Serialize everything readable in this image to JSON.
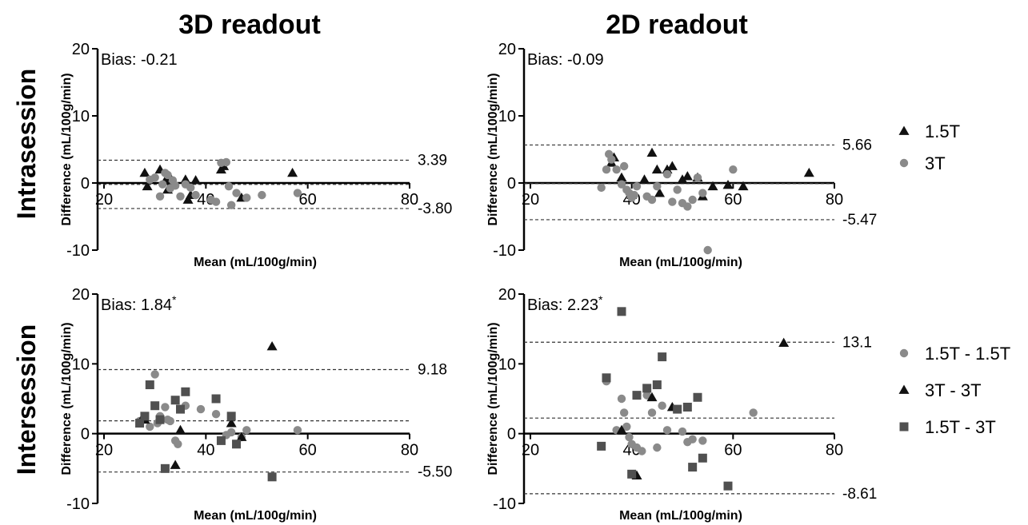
{
  "column_titles": [
    "3D readout",
    "2D readout"
  ],
  "row_titles": [
    "Intrasession",
    "Intersession"
  ],
  "legends": {
    "intrasession": [
      {
        "label": "1.5T",
        "marker": "triangle",
        "color": "#111111"
      },
      {
        "label": "3T",
        "marker": "circle",
        "color": "#8a8a8a"
      }
    ],
    "intersession": [
      {
        "label": "1.5T - 1.5T",
        "marker": "circle",
        "color": "#8a8a8a"
      },
      {
        "label": "3T - 3T",
        "marker": "triangle",
        "color": "#111111"
      },
      {
        "label": "1.5T - 3T",
        "marker": "square",
        "color": "#505050"
      }
    ]
  },
  "chart_data": [
    {
      "type": "scatter",
      "title": "3D readout",
      "xlabel": "Mean (mL/100g/min)",
      "ylabel": "Difference (mL/100g/min)",
      "xlim": [
        20,
        80
      ],
      "ylim": [
        -10,
        20
      ],
      "xticks": [
        20,
        40,
        60,
        80
      ],
      "yticks": [
        -10,
        0,
        10,
        20
      ],
      "bias_label": "Bias: -0.21",
      "bias_asterisk": "",
      "bias": -0.21,
      "upper": 3.39,
      "lower": -3.8,
      "upper_label": "3.39",
      "lower_label": "-3.80",
      "series": [
        {
          "name": "1.5T",
          "marker": "triangle",
          "points": [
            [
              28,
              1.5
            ],
            [
              28.5,
              -0.5
            ],
            [
              31,
              2.0
            ],
            [
              32,
              0.3
            ],
            [
              32.5,
              -1.0
            ],
            [
              33,
              0.8
            ],
            [
              36,
              0.5
            ],
            [
              36.5,
              -2.5
            ],
            [
              37,
              -1.8
            ],
            [
              38,
              0.4
            ],
            [
              43,
              2.0
            ],
            [
              43.5,
              2.5
            ],
            [
              47,
              -2.2
            ],
            [
              57,
              1.5
            ]
          ]
        },
        {
          "name": "3T",
          "marker": "circle",
          "points": [
            [
              29,
              0.5
            ],
            [
              30,
              0.8
            ],
            [
              31,
              -2.0
            ],
            [
              31.5,
              -0.2
            ],
            [
              32,
              1.5
            ],
            [
              32.5,
              1.2
            ],
            [
              33,
              -0.8
            ],
            [
              33.5,
              0.4
            ],
            [
              34,
              -0.4
            ],
            [
              35,
              -2.0
            ],
            [
              36,
              -0.2
            ],
            [
              37,
              -0.7
            ],
            [
              38,
              -1.8
            ],
            [
              41,
              -2.5
            ],
            [
              42,
              -2.8
            ],
            [
              43,
              3.0
            ],
            [
              44,
              3.1
            ],
            [
              44.5,
              -0.5
            ],
            [
              45,
              -3.3
            ],
            [
              46,
              -1.5
            ],
            [
              48,
              -2.2
            ],
            [
              51,
              -1.8
            ],
            [
              58,
              -1.5
            ]
          ]
        }
      ]
    },
    {
      "type": "scatter",
      "title": "2D readout",
      "xlabel": "Mean (mL/100g/min)",
      "ylabel": "Difference (mL/100g/min)",
      "xlim": [
        20,
        80
      ],
      "ylim": [
        -10,
        20
      ],
      "xticks": [
        20,
        40,
        60,
        80
      ],
      "yticks": [
        -10,
        0,
        10,
        20
      ],
      "bias_label": "Bias: -0.09",
      "bias_asterisk": "",
      "bias": -0.09,
      "upper": 5.66,
      "lower": -5.47,
      "upper_label": "5.66",
      "lower_label": "-5.47",
      "series": [
        {
          "name": "1.5T",
          "marker": "triangle",
          "points": [
            [
              36,
              3.0
            ],
            [
              36.5,
              3.8
            ],
            [
              38,
              0.8
            ],
            [
              40,
              -1.8
            ],
            [
              42.5,
              0.5
            ],
            [
              44,
              4.5
            ],
            [
              45,
              2.0
            ],
            [
              45.5,
              -1.5
            ],
            [
              47,
              2.0
            ],
            [
              48,
              2.5
            ],
            [
              50,
              0.5
            ],
            [
              51,
              1.0
            ],
            [
              53,
              0.8
            ],
            [
              54,
              -2.0
            ],
            [
              56,
              -0.5
            ],
            [
              59,
              -0.3
            ],
            [
              62,
              -0.5
            ],
            [
              75,
              1.5
            ]
          ]
        },
        {
          "name": "3T",
          "marker": "circle",
          "points": [
            [
              34,
              -0.7
            ],
            [
              35,
              2.0
            ],
            [
              35.5,
              4.3
            ],
            [
              36,
              3.5
            ],
            [
              37,
              2.0
            ],
            [
              38,
              -0.2
            ],
            [
              38.5,
              2.5
            ],
            [
              39,
              -1.0
            ],
            [
              39.5,
              -1.5
            ],
            [
              40,
              -2.2
            ],
            [
              40.5,
              -1.8
            ],
            [
              41,
              -0.5
            ],
            [
              43,
              -2.0
            ],
            [
              44,
              -2.5
            ],
            [
              45,
              -0.5
            ],
            [
              47,
              1.3
            ],
            [
              48,
              -2.8
            ],
            [
              49,
              -1.0
            ],
            [
              50,
              -3.0
            ],
            [
              51,
              -3.5
            ],
            [
              52,
              -2.5
            ],
            [
              53,
              0.8
            ],
            [
              54,
              -1.5
            ],
            [
              55,
              -10.0
            ],
            [
              60,
              2.0
            ]
          ]
        }
      ]
    },
    {
      "type": "scatter",
      "title": "3D readout",
      "xlabel": "Mean (mL/100g/min)",
      "ylabel": "Difference (mL/100g/min)",
      "xlim": [
        20,
        80
      ],
      "ylim": [
        -10,
        20
      ],
      "xticks": [
        20,
        40,
        60,
        80
      ],
      "yticks": [
        -10,
        0,
        10,
        20
      ],
      "bias_label": "Bias: 1.84",
      "bias_asterisk": "*",
      "bias": 1.84,
      "upper": 9.18,
      "lower": -5.5,
      "upper_label": "9.18",
      "lower_label": "-5.50",
      "series": [
        {
          "name": "1.5T - 1.5T",
          "marker": "circle",
          "points": [
            [
              27,
              1.8
            ],
            [
              29,
              1.0
            ],
            [
              30,
              8.5
            ],
            [
              30.5,
              1.5
            ],
            [
              31,
              2.5
            ],
            [
              32,
              3.8
            ],
            [
              32.5,
              2.0
            ],
            [
              33,
              1.8
            ],
            [
              34,
              -1.0
            ],
            [
              34.5,
              -1.5
            ],
            [
              36,
              4.0
            ],
            [
              39,
              3.5
            ],
            [
              42,
              2.8
            ],
            [
              44,
              -0.2
            ],
            [
              45,
              0.2
            ],
            [
              47,
              -0.5
            ],
            [
              48,
              0.5
            ],
            [
              58,
              0.5
            ]
          ]
        },
        {
          "name": "3T - 3T",
          "marker": "triangle",
          "points": [
            [
              27.5,
              2.2
            ],
            [
              28,
              2.0
            ],
            [
              34,
              -4.5
            ],
            [
              35,
              0.5
            ],
            [
              45,
              1.5
            ],
            [
              47,
              -0.5
            ],
            [
              53,
              12.5
            ]
          ]
        },
        {
          "name": "1.5T - 3T",
          "marker": "square",
          "points": [
            [
              27,
              1.5
            ],
            [
              28,
              2.5
            ],
            [
              29,
              7.0
            ],
            [
              30,
              4.0
            ],
            [
              31,
              2.0
            ],
            [
              32,
              -5.0
            ],
            [
              34,
              4.8
            ],
            [
              35,
              3.5
            ],
            [
              36,
              6.0
            ],
            [
              42,
              5.0
            ],
            [
              43,
              -1.0
            ],
            [
              45,
              2.5
            ],
            [
              46,
              -1.5
            ],
            [
              53,
              -6.2
            ]
          ]
        }
      ]
    },
    {
      "type": "scatter",
      "title": "2D readout",
      "xlabel": "Mean (mL/100g/min)",
      "ylabel": "Difference (mL/100g/min)",
      "xlim": [
        20,
        80
      ],
      "ylim": [
        -10,
        20
      ],
      "xticks": [
        20,
        40,
        60,
        80
      ],
      "yticks": [
        -10,
        0,
        10,
        20
      ],
      "bias_label": "Bias: 2.23",
      "bias_asterisk": "*",
      "bias": 2.23,
      "upper": 13.1,
      "lower": -8.61,
      "upper_label": "13.1",
      "lower_label": "-8.61",
      "series": [
        {
          "name": "1.5T - 1.5T",
          "marker": "circle",
          "points": [
            [
              35,
              7.5
            ],
            [
              37,
              0.5
            ],
            [
              38,
              5.0
            ],
            [
              38.5,
              3.0
            ],
            [
              39,
              1.0
            ],
            [
              39.5,
              -0.5
            ],
            [
              40,
              -1.5
            ],
            [
              41,
              -2.0
            ],
            [
              42,
              -2.5
            ],
            [
              43,
              5.5
            ],
            [
              44,
              3.0
            ],
            [
              45,
              -2.0
            ],
            [
              46,
              4.0
            ],
            [
              47,
              0.5
            ],
            [
              50,
              0.3
            ],
            [
              51,
              -1.2
            ],
            [
              52,
              -0.8
            ],
            [
              54,
              -1.0
            ],
            [
              64,
              3.0
            ]
          ]
        },
        {
          "name": "3T - 3T",
          "marker": "triangle",
          "points": [
            [
              38,
              0.5
            ],
            [
              41,
              -6.0
            ],
            [
              44,
              5.2
            ],
            [
              48,
              3.8
            ],
            [
              70,
              13.0
            ]
          ]
        },
        {
          "name": "1.5T - 3T",
          "marker": "square",
          "points": [
            [
              34,
              -1.8
            ],
            [
              35,
              8.0
            ],
            [
              38,
              17.5
            ],
            [
              40,
              -5.8
            ],
            [
              41,
              5.5
            ],
            [
              43,
              6.5
            ],
            [
              45,
              7.0
            ],
            [
              46,
              11.0
            ],
            [
              49,
              3.5
            ],
            [
              51,
              3.8
            ],
            [
              52,
              -4.8
            ],
            [
              53,
              5.2
            ],
            [
              54,
              -3.5
            ],
            [
              59,
              -7.5
            ]
          ]
        }
      ]
    }
  ]
}
